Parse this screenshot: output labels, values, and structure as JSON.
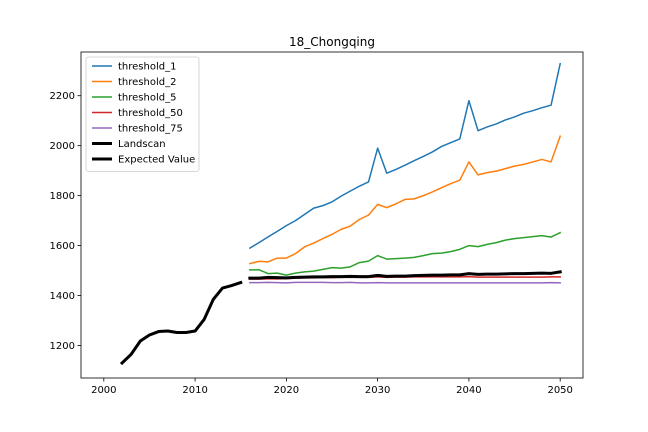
{
  "chart_data": {
    "type": "line",
    "title": "18_Chongqing",
    "xlabel": "",
    "ylabel": "",
    "xlim": [
      1997.5,
      2052.5
    ],
    "ylim": [
      1070,
      2375
    ],
    "xticks": [
      2000,
      2010,
      2020,
      2030,
      2040,
      2050
    ],
    "yticks": [
      1200,
      1400,
      1600,
      1800,
      2000,
      2200
    ],
    "grid": false,
    "legend_position": "top-left",
    "series": [
      {
        "name": "threshold_1",
        "color": "#1f77b4",
        "width": 1.5,
        "x": [
          2016,
          2017,
          2018,
          2019,
          2020,
          2021,
          2022,
          2023,
          2024,
          2025,
          2026,
          2027,
          2028,
          2029,
          2030,
          2031,
          2032,
          2033,
          2034,
          2035,
          2036,
          2037,
          2038,
          2039,
          2040,
          2041,
          2042,
          2043,
          2044,
          2045,
          2046,
          2047,
          2048,
          2049,
          2050
        ],
        "y": [
          1590,
          1612,
          1635,
          1657,
          1680,
          1700,
          1725,
          1750,
          1760,
          1775,
          1798,
          1818,
          1838,
          1855,
          1990,
          1890,
          1905,
          1922,
          1940,
          1957,
          1975,
          1997,
          2012,
          2027,
          2180,
          2060,
          2075,
          2087,
          2103,
          2115,
          2130,
          2140,
          2152,
          2162,
          2328
        ]
      },
      {
        "name": "threshold_2",
        "color": "#ff7f0e",
        "width": 1.5,
        "x": [
          2016,
          2017,
          2018,
          2019,
          2020,
          2021,
          2022,
          2023,
          2024,
          2025,
          2026,
          2027,
          2028,
          2029,
          2030,
          2031,
          2032,
          2033,
          2034,
          2035,
          2036,
          2037,
          2038,
          2039,
          2040,
          2041,
          2042,
          2043,
          2044,
          2045,
          2046,
          2047,
          2048,
          2049,
          2050
        ],
        "y": [
          1528,
          1537,
          1535,
          1550,
          1550,
          1568,
          1595,
          1610,
          1628,
          1645,
          1665,
          1678,
          1705,
          1722,
          1765,
          1752,
          1767,
          1785,
          1787,
          1800,
          1815,
          1832,
          1848,
          1862,
          1935,
          1883,
          1892,
          1898,
          1908,
          1918,
          1925,
          1935,
          1945,
          1935,
          2038
        ]
      },
      {
        "name": "threshold_5",
        "color": "#2ca02c",
        "width": 1.5,
        "x": [
          2016,
          2017,
          2018,
          2019,
          2020,
          2021,
          2022,
          2023,
          2024,
          2025,
          2026,
          2027,
          2028,
          2029,
          2030,
          2031,
          2032,
          2033,
          2034,
          2035,
          2036,
          2037,
          2038,
          2039,
          2040,
          2041,
          2042,
          2043,
          2044,
          2045,
          2046,
          2047,
          2048,
          2049,
          2050
        ],
        "y": [
          1503,
          1503,
          1488,
          1490,
          1482,
          1490,
          1495,
          1498,
          1505,
          1512,
          1510,
          1515,
          1532,
          1538,
          1560,
          1546,
          1548,
          1550,
          1553,
          1560,
          1568,
          1570,
          1576,
          1585,
          1600,
          1596,
          1605,
          1612,
          1622,
          1628,
          1632,
          1636,
          1640,
          1634,
          1652
        ]
      },
      {
        "name": "threshold_50",
        "color": "#d62728",
        "width": 1.5,
        "x": [
          2016,
          2017,
          2018,
          2019,
          2020,
          2021,
          2022,
          2023,
          2024,
          2025,
          2026,
          2027,
          2028,
          2029,
          2030,
          2031,
          2032,
          2033,
          2034,
          2035,
          2036,
          2037,
          2038,
          2039,
          2040,
          2041,
          2042,
          2043,
          2044,
          2045,
          2046,
          2047,
          2048,
          2049,
          2050
        ],
        "y": [
          1466,
          1466,
          1467,
          1467,
          1468,
          1470,
          1471,
          1471,
          1472,
          1472,
          1473,
          1473,
          1473,
          1473,
          1475,
          1473,
          1474,
          1474,
          1475,
          1475,
          1475,
          1475,
          1475,
          1475,
          1476,
          1474,
          1474,
          1474,
          1474,
          1474,
          1474,
          1474,
          1474,
          1475,
          1475
        ]
      },
      {
        "name": "threshold_75",
        "color": "#9467bd",
        "width": 1.5,
        "x": [
          2016,
          2017,
          2018,
          2019,
          2020,
          2021,
          2022,
          2023,
          2024,
          2025,
          2026,
          2027,
          2028,
          2029,
          2030,
          2031,
          2032,
          2033,
          2034,
          2035,
          2036,
          2037,
          2038,
          2039,
          2040,
          2041,
          2042,
          2043,
          2044,
          2045,
          2046,
          2047,
          2048,
          2049,
          2050
        ],
        "y": [
          1452,
          1452,
          1453,
          1452,
          1451,
          1453,
          1453,
          1453,
          1453,
          1452,
          1452,
          1453,
          1451,
          1451,
          1452,
          1451,
          1451,
          1451,
          1451,
          1451,
          1451,
          1451,
          1451,
          1451,
          1451,
          1451,
          1451,
          1451,
          1451,
          1451,
          1451,
          1451,
          1451,
          1452,
          1451
        ]
      },
      {
        "name": "Landscan",
        "color": "#000000",
        "width": 3,
        "x": [
          2002,
          2003,
          2004,
          2005,
          2006,
          2007,
          2008,
          2009,
          2010,
          2011,
          2012,
          2013,
          2014,
          2015
        ],
        "y": [
          1130,
          1165,
          1218,
          1242,
          1256,
          1258,
          1252,
          1252,
          1258,
          1305,
          1385,
          1430,
          1440,
          1452
        ]
      },
      {
        "name": "Expected Value",
        "color": "#000000",
        "width": 3,
        "x": [
          2016,
          2017,
          2018,
          2019,
          2020,
          2021,
          2022,
          2023,
          2024,
          2025,
          2026,
          2027,
          2028,
          2029,
          2030,
          2031,
          2032,
          2033,
          2034,
          2035,
          2036,
          2037,
          2038,
          2039,
          2040,
          2041,
          2042,
          2043,
          2044,
          2045,
          2046,
          2047,
          2048,
          2049,
          2050
        ],
        "y": [
          1470,
          1470,
          1473,
          1472,
          1471,
          1473,
          1474,
          1475,
          1475,
          1476,
          1476,
          1477,
          1476,
          1476,
          1481,
          1477,
          1478,
          1478,
          1480,
          1481,
          1482,
          1482,
          1483,
          1483,
          1488,
          1485,
          1486,
          1486,
          1487,
          1488,
          1488,
          1489,
          1490,
          1489,
          1495
        ]
      }
    ]
  }
}
